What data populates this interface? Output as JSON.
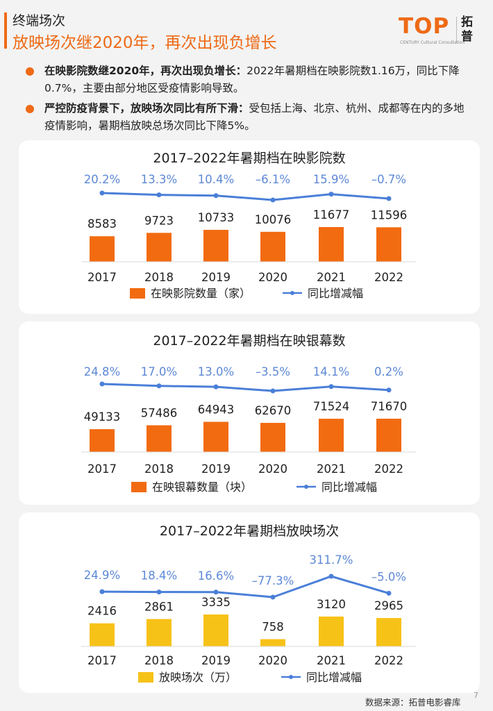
{
  "header": {
    "subtitle": "终端场次",
    "title": "放映场次继2020年，再次出现负增长"
  },
  "logo": {
    "mark": "TOP",
    "tagline": "CENTURY Cultural Consultation",
    "cn": "拓普"
  },
  "bullets": [
    {
      "lead": "在映影院数继2020年，再次出现负增长：",
      "text": "2022年暑期档在映影院数1.16万，同比下降0.7%，主要由部分地区受疫情影响导致。"
    },
    {
      "lead": "严控防疫背景下，放映场次同比有所下滑：",
      "text": "受包括上海、北京、杭州、成都等在内的多地疫情影响，暑期档放映总场次同比下降5%。"
    }
  ],
  "colors": {
    "accent": "#ee6a16",
    "bar_orange": "#f26b10",
    "bar_yellow": "#f7c218",
    "line_blue": "#4a7fd8",
    "label_blue": "#5d88d6"
  },
  "chart_data": [
    {
      "type": "bar",
      "title": "2017–2022年暑期档在映影院数",
      "categories": [
        "2017",
        "2018",
        "2019",
        "2020",
        "2021",
        "2022"
      ],
      "series": [
        {
          "name": "在映影院数量（家）",
          "type": "bar",
          "values": [
            8583,
            9723,
            10733,
            10076,
            11677,
            11596
          ],
          "labels": [
            "8583",
            "9723",
            "10733",
            "10076",
            "11677",
            "11596"
          ]
        },
        {
          "name": "同比增减幅",
          "type": "line",
          "values": [
            20.2,
            13.3,
            10.4,
            -6.1,
            15.9,
            -0.7
          ],
          "labels": [
            "20.2%",
            "13.3%",
            "10.4%",
            "–6.1%",
            "15.9%",
            "–0.7%"
          ]
        }
      ],
      "legend": "bottom"
    },
    {
      "type": "bar",
      "title": "2017–2022年暑期档在映银幕数",
      "categories": [
        "2017",
        "2018",
        "2019",
        "2020",
        "2021",
        "2022"
      ],
      "series": [
        {
          "name": "在映银幕数量（块）",
          "type": "bar",
          "values": [
            49133,
            57486,
            64943,
            62670,
            71524,
            71670
          ],
          "labels": [
            "49133",
            "57486",
            "64943",
            "62670",
            "71524",
            "71670"
          ]
        },
        {
          "name": "同比增减幅",
          "type": "line",
          "values": [
            24.8,
            17.0,
            13.0,
            -3.5,
            14.1,
            0.2
          ],
          "labels": [
            "24.8%",
            "17.0%",
            "13.0%",
            "–3.5%",
            "14.1%",
            "0.2%"
          ]
        }
      ],
      "legend": "bottom"
    },
    {
      "type": "bar",
      "title": "2017–2022年暑期档放映场次",
      "categories": [
        "2017",
        "2018",
        "2019",
        "2020",
        "2021",
        "2022"
      ],
      "series": [
        {
          "name": "放映场次（万）",
          "type": "bar",
          "values": [
            2416,
            2861,
            3335,
            758,
            3120,
            2965
          ],
          "labels": [
            "2416",
            "2861",
            "3335",
            "758",
            "3120",
            "2965"
          ]
        },
        {
          "name": "同比增减幅",
          "type": "line",
          "values": [
            24.9,
            18.4,
            16.6,
            -77.3,
            311.7,
            -5.0
          ],
          "labels": [
            "24.9%",
            "18.4%",
            "16.6%",
            "–77.3%",
            "311.7%",
            "–5.0%"
          ]
        }
      ],
      "legend": "bottom"
    }
  ],
  "footer": {
    "source": "数据来源：拓普电影睿库",
    "page": "7"
  }
}
